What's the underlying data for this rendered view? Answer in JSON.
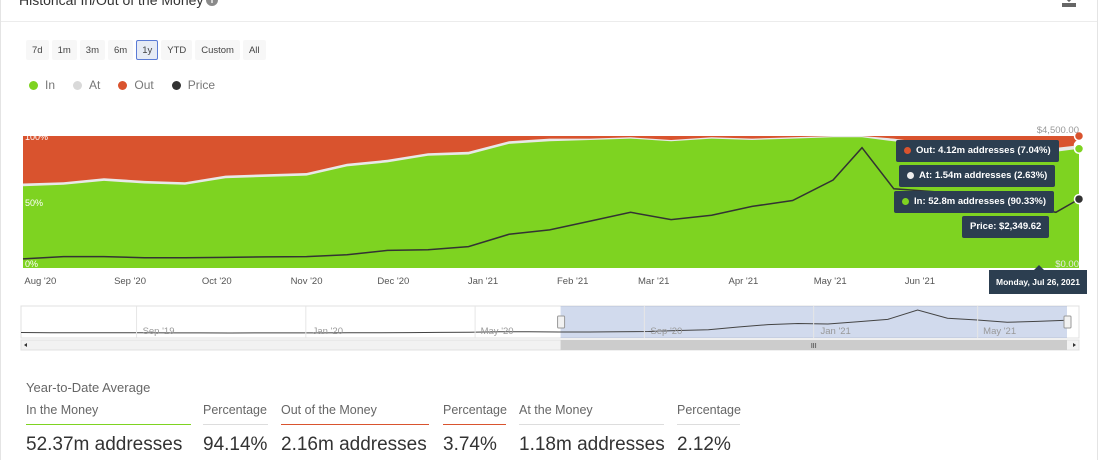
{
  "header": {
    "title": "Historical In/Out of the Money",
    "info_icon": "info-icon",
    "download_icon": "download-icon"
  },
  "ranges": [
    {
      "label": "7d",
      "active": false
    },
    {
      "label": "1m",
      "active": false
    },
    {
      "label": "3m",
      "active": false
    },
    {
      "label": "6m",
      "active": false
    },
    {
      "label": "1y",
      "active": true
    },
    {
      "label": "YTD",
      "active": false
    },
    {
      "label": "Custom",
      "active": false
    },
    {
      "label": "All",
      "active": false
    }
  ],
  "legend": [
    {
      "label": "In",
      "color": "#7ed321"
    },
    {
      "label": "At",
      "color": "#d9d9d9"
    },
    {
      "label": "Out",
      "color": "#d9532e"
    },
    {
      "label": "Price",
      "color": "#333333"
    }
  ],
  "chart_data": {
    "type": "area",
    "stacking": "percent",
    "x_labels": [
      "Aug '20",
      "Sep '20",
      "Oct '20",
      "Nov '20",
      "Dec '20",
      "Jan '21",
      "Feb '21",
      "Mar '21",
      "Apr '21",
      "May '21",
      "Jun '21"
    ],
    "y_left_labels": [
      "100%",
      "50%",
      "0%"
    ],
    "y_right_labels": [
      "$4,500.00",
      "$0.00"
    ],
    "dates": [
      "2020-07-26",
      "2020-08-09",
      "2020-08-23",
      "2020-09-06",
      "2020-09-20",
      "2020-10-04",
      "2020-10-18",
      "2020-11-01",
      "2020-11-15",
      "2020-11-29",
      "2020-12-13",
      "2020-12-27",
      "2021-01-10",
      "2021-01-24",
      "2021-02-07",
      "2021-02-21",
      "2021-03-07",
      "2021-03-21",
      "2021-04-04",
      "2021-04-18",
      "2021-05-02",
      "2021-05-12",
      "2021-05-23",
      "2021-06-06",
      "2021-06-20",
      "2021-07-04",
      "2021-07-18",
      "2021-07-26"
    ],
    "series": [
      {
        "name": "In",
        "color": "#7ed321",
        "values": [
          62,
          63,
          66,
          64,
          63,
          68,
          69,
          70,
          77,
          80,
          85,
          86,
          94,
          96,
          97,
          98,
          96,
          98,
          97,
          98,
          99,
          99,
          96,
          92,
          87,
          86,
          88,
          90.33
        ]
      },
      {
        "name": "At",
        "color": "#e8e8e8",
        "values": [
          2,
          2,
          2,
          2,
          2,
          2,
          2,
          2,
          2,
          2,
          2,
          2,
          2,
          2,
          1,
          1,
          1,
          1,
          1,
          1,
          1,
          1,
          2,
          2,
          3,
          3,
          3,
          2.63
        ]
      },
      {
        "name": "Out",
        "color": "#d9532e",
        "values": [
          36,
          35,
          32,
          34,
          35,
          30,
          29,
          28,
          21,
          18,
          13,
          12,
          4,
          2,
          2,
          1,
          3,
          1,
          2,
          1,
          0,
          0,
          2,
          6,
          10,
          11,
          9,
          7.04
        ]
      },
      {
        "name": "Price",
        "color": "#333333",
        "values": [
          310,
          390,
          390,
          350,
          350,
          360,
          380,
          390,
          450,
          600,
          620,
          730,
          1150,
          1300,
          1600,
          1900,
          1650,
          1800,
          2100,
          2300,
          3000,
          4100,
          2700,
          2600,
          2000,
          2150,
          1900,
          2349.62
        ]
      }
    ],
    "price_range": [
      0,
      4500
    ]
  },
  "tooltip": {
    "date": "Monday, Jul 26, 2021",
    "out": "Out: 4.12m addresses (7.04%)",
    "at": "At: 1.54m addresses (2.63%)",
    "in": "In: 52.8m addresses (90.33%)",
    "price": "Price: $2,349.62"
  },
  "navigator": {
    "labels": [
      "Sep '19",
      "Jan '20",
      "May '20",
      "Sep '20",
      "Jan '21",
      "May '21"
    ],
    "price_values": [
      250,
      230,
      230,
      220,
      200,
      190,
      180,
      170,
      180,
      180,
      190,
      210,
      230,
      240,
      270,
      300,
      380,
      380,
      350,
      350,
      380,
      430,
      600,
      740,
      1200,
      1600,
      1800,
      1700,
      2100,
      2500,
      4100,
      2700,
      2400,
      2000,
      2150,
      2349.62
    ],
    "selection_start": 0.51,
    "selection_end": 1.0,
    "scroll_grip": "III"
  },
  "summary": {
    "title": "Year-to-Date Average",
    "stats": [
      {
        "head": "In the Money",
        "value": "52.37m addresses",
        "color": "#7ed321"
      },
      {
        "head": "Percentage",
        "value": "94.14%",
        "color": "#dddddd"
      },
      {
        "head": "Out of the Money",
        "value": "2.16m addresses",
        "color": "#d9532e"
      },
      {
        "head": "Percentage",
        "value": "3.74%",
        "color": "#d9532e"
      },
      {
        "head": "At the Money",
        "value": "1.18m addresses",
        "color": "#dddddd"
      },
      {
        "head": "Percentage",
        "value": "2.12%",
        "color": "#dddddd"
      }
    ]
  }
}
